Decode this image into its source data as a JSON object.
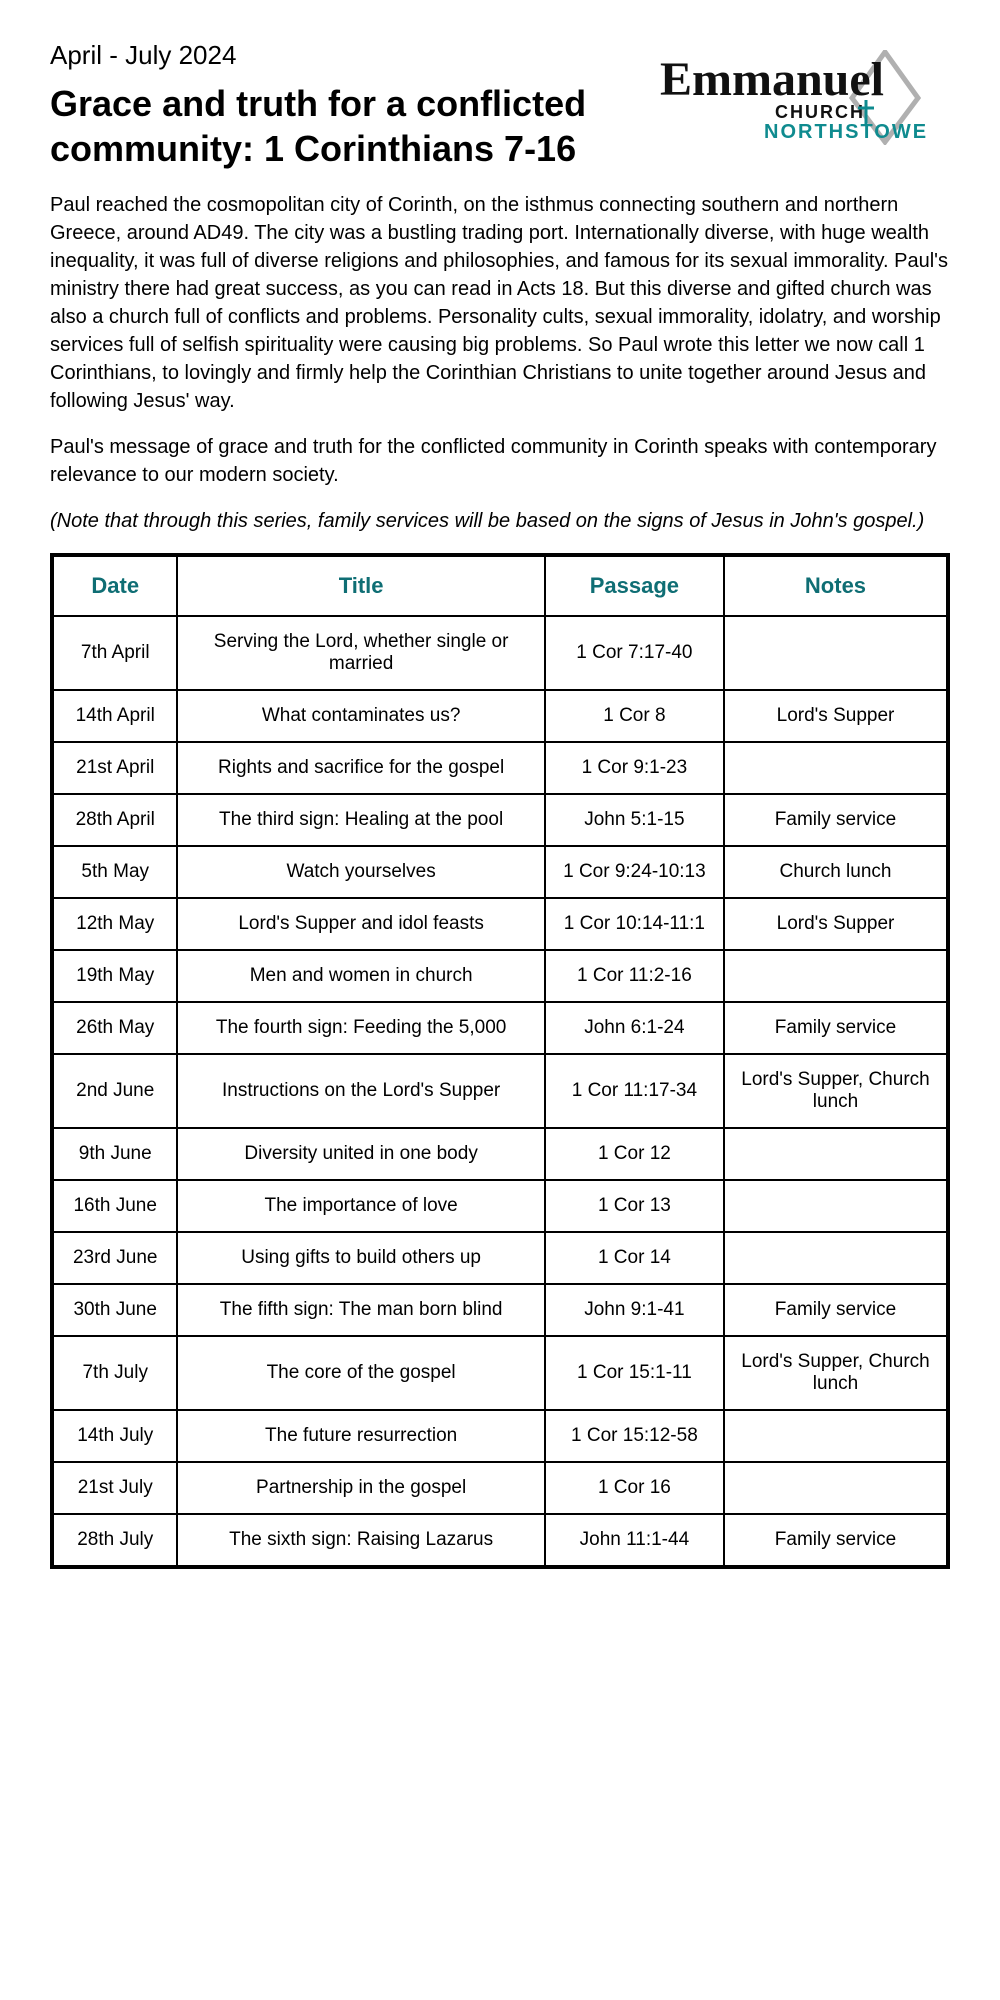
{
  "header": {
    "date_range": "April - July 2024",
    "title": "Grace and truth for a conflicted community: 1 Corinthians 7-16",
    "logo": {
      "line1": "Emmanuel",
      "line2": "CHURCH",
      "line3": "NORTHSTOWE",
      "color_dark": "#111111",
      "color_teal": "#0f8b8f",
      "color_grey": "#b0b0b0"
    }
  },
  "intro": {
    "p1": "Paul reached the cosmopolitan city of Corinth, on the isthmus connecting southern and northern Greece, around AD49. The city was a bustling trading port. Internationally diverse, with huge wealth inequality, it was full of diverse religions and philosophies, and famous for its sexual immorality. Paul's ministry there had great success, as you can read in Acts 18. But this diverse and gifted church was also a church full of conflicts and problems. Personality cults, sexual immorality, idolatry, and worship services full of selfish spirituality were causing big problems. So Paul wrote this letter we now call 1 Corinthians, to lovingly and firmly help the Corinthian Christians to unite together around Jesus and following Jesus' way.",
    "p2": "Paul's message of grace and truth for the conflicted community in Corinth speaks with contemporary relevance to our modern society.",
    "note": "(Note that through this series, family services will be based on the signs of Jesus in John's gospel.)"
  },
  "table": {
    "headers": {
      "date": "Date",
      "title": "Title",
      "passage": "Passage",
      "notes": "Notes"
    },
    "header_color": "#0f6e74",
    "border_color": "#000000",
    "rows": [
      {
        "date": "7th April",
        "title": "Serving the Lord, whether single or married",
        "passage": "1 Cor 7:17-40",
        "notes": ""
      },
      {
        "date": "14th April",
        "title": "What contaminates us?",
        "passage": "1 Cor 8",
        "notes": "Lord's Supper"
      },
      {
        "date": "21st April",
        "title": "Rights and sacrifice for the gospel",
        "passage": "1 Cor 9:1-23",
        "notes": ""
      },
      {
        "date": "28th April",
        "title": "The third sign: Healing at the pool",
        "passage": "John 5:1-15",
        "notes": "Family service"
      },
      {
        "date": "5th May",
        "title": "Watch yourselves",
        "passage": "1 Cor 9:24-10:13",
        "notes": "Church lunch"
      },
      {
        "date": "12th May",
        "title": "Lord's Supper and idol feasts",
        "passage": "1 Cor 10:14-11:1",
        "notes": "Lord's Supper"
      },
      {
        "date": "19th May",
        "title": "Men and women in church",
        "passage": "1 Cor 11:2-16",
        "notes": ""
      },
      {
        "date": "26th May",
        "title": "The fourth sign: Feeding the 5,000",
        "passage": "John 6:1-24",
        "notes": "Family service"
      },
      {
        "date": "2nd June",
        "title": "Instructions on the Lord's Supper",
        "passage": "1 Cor 11:17-34",
        "notes": "Lord's Supper, Church lunch"
      },
      {
        "date": "9th June",
        "title": "Diversity united in one body",
        "passage": "1 Cor 12",
        "notes": ""
      },
      {
        "date": "16th June",
        "title": "The importance of love",
        "passage": "1 Cor 13",
        "notes": ""
      },
      {
        "date": "23rd June",
        "title": "Using gifts to build others up",
        "passage": "1 Cor 14",
        "notes": ""
      },
      {
        "date": "30th June",
        "title": "The fifth sign: The man born blind",
        "passage": "John 9:1-41",
        "notes": "Family service"
      },
      {
        "date": "7th July",
        "title": "The core of the gospel",
        "passage": "1 Cor 15:1-11",
        "notes": "Lord's Supper, Church lunch"
      },
      {
        "date": "14th July",
        "title": "The future resurrection",
        "passage": "1 Cor 15:12-58",
        "notes": ""
      },
      {
        "date": "21st July",
        "title": "Partnership in the gospel",
        "passage": "1 Cor 16",
        "notes": ""
      },
      {
        "date": "28th July",
        "title": "The sixth sign: Raising Lazarus",
        "passage": "John 11:1-44",
        "notes": "Family service"
      }
    ]
  }
}
